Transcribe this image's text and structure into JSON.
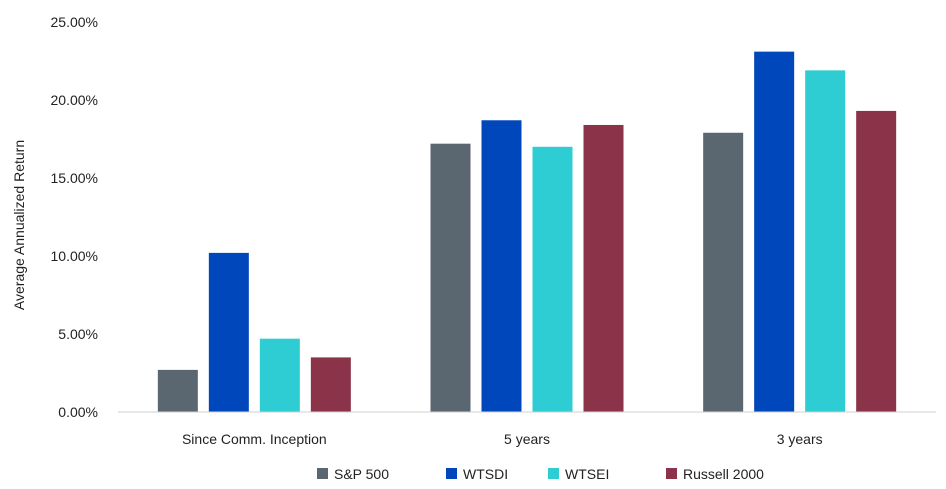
{
  "chart_data": {
    "type": "bar",
    "ylabel": "Average Annualized Return",
    "xlabel": "",
    "title": "",
    "ylim": [
      0,
      0.25
    ],
    "ytick_values": [
      0,
      0.05,
      0.1,
      0.15,
      0.2,
      0.25
    ],
    "ytick_labels": [
      "0.00%",
      "5.00%",
      "10.00%",
      "15.00%",
      "20.00%",
      "25.00%"
    ],
    "categories": [
      "Since Comm. Inception",
      "5 years",
      "3 years"
    ],
    "series": [
      {
        "name": "S&P 500",
        "color": "#5a6670",
        "values": [
          0.027,
          0.172,
          0.179
        ]
      },
      {
        "name": "WTSDI",
        "color": "#0047bb",
        "values": [
          0.102,
          0.187,
          0.231
        ]
      },
      {
        "name": "WTSEI",
        "color": "#2ecdd3",
        "values": [
          0.047,
          0.17,
          0.219
        ]
      },
      {
        "name": "Russell 2000",
        "color": "#8b3349",
        "values": [
          0.035,
          0.184,
          0.193
        ]
      }
    ],
    "legend_position": "bottom",
    "grid": false
  }
}
